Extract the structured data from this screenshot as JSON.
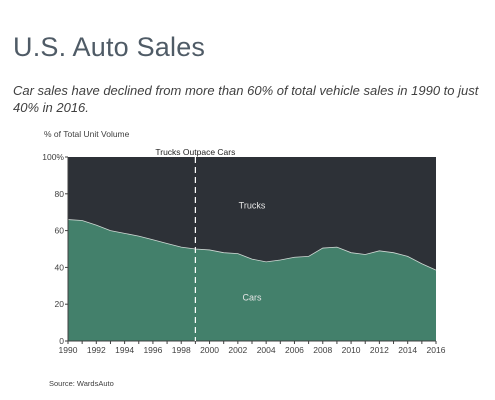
{
  "title": "U.S. Auto Sales",
  "subtitle": "Car sales have declined from more than 60% of total vehicle sales in 1990 to just 40% in 2016.",
  "source": "Source: WardsAuto",
  "colors": {
    "trucks": "#2d3137",
    "cars": "#43806b",
    "title": "#4f5b66",
    "text": "#404040",
    "divider": "#ffffff"
  },
  "chart_data": {
    "type": "area",
    "ylabel": "% of Total Unit Volume",
    "xlabel": "",
    "xlim": [
      1990,
      2016
    ],
    "ylim": [
      0,
      100
    ],
    "grid": false,
    "stacked": true,
    "y_tick_labels": [
      "0",
      "20",
      "40",
      "60",
      "80",
      "100%"
    ],
    "x_tick_labels": [
      "1990",
      "1992",
      "1994",
      "1996",
      "1998",
      "2000",
      "2002",
      "2004",
      "2006",
      "2008",
      "2010",
      "2012",
      "2014",
      "2016"
    ],
    "x": [
      1990,
      1991,
      1992,
      1993,
      1994,
      1995,
      1996,
      1997,
      1998,
      1999,
      2000,
      2001,
      2002,
      2003,
      2004,
      2005,
      2006,
      2007,
      2008,
      2009,
      2010,
      2011,
      2012,
      2013,
      2014,
      2015,
      2016
    ],
    "series": [
      {
        "name": "Cars",
        "values": [
          66,
          65.5,
          63,
          60,
          58.5,
          57,
          55,
          53,
          51,
          50,
          49.5,
          48,
          47.5,
          44.5,
          43,
          44,
          45.5,
          46,
          50.5,
          51,
          48,
          47,
          49,
          48,
          46,
          42,
          38.5
        ]
      },
      {
        "name": "Trucks",
        "values": [
          34,
          34.5,
          37,
          40,
          41.5,
          43,
          45,
          47,
          49,
          50,
          50.5,
          52,
          52.5,
          55.5,
          57,
          56,
          54.5,
          54,
          49.5,
          49,
          52,
          53,
          51,
          52,
          54,
          58,
          61.5
        ]
      }
    ],
    "annotations": [
      {
        "text": "Trucks Outpace Cars",
        "x": 1999,
        "type": "vertical-dashed-line"
      },
      {
        "text": "Trucks",
        "x": 2003,
        "y": 72,
        "type": "area-label"
      },
      {
        "text": "Cars",
        "x": 2003,
        "y": 22,
        "type": "area-label"
      }
    ]
  }
}
